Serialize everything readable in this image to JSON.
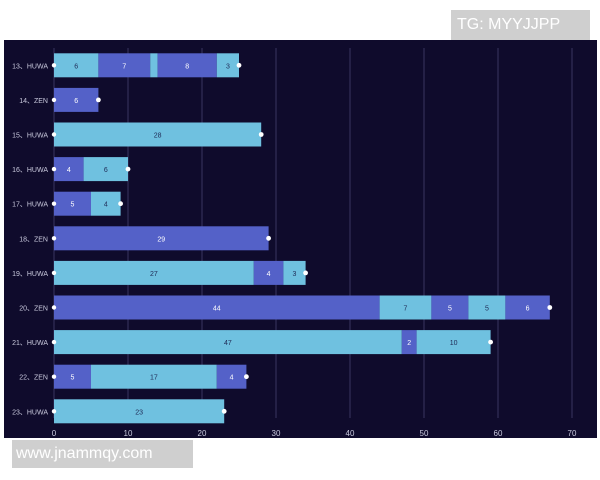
{
  "watermarks": {
    "top": "TG: MYYJJPP",
    "bottom": "www.jnammqy.com"
  },
  "colors": {
    "background": "#0f0b2c",
    "dark": "#5461c8",
    "light": "#6fc1e0",
    "grid": "#3a3660",
    "text": "#c9c9dd",
    "label_dark": "#1f2a55"
  },
  "chart_data": {
    "type": "bar",
    "orientation": "horizontal",
    "stacked": true,
    "title": "",
    "xlabel": "",
    "ylabel": "",
    "xlim": [
      0,
      70
    ],
    "x_ticks": [
      0,
      10,
      20,
      30,
      40,
      50,
      60,
      70
    ],
    "grid": true,
    "categories": [
      "13、HUWA",
      "14、ZEN",
      "15、HUWA",
      "16、HUWA",
      "17、HUWA",
      "18、ZEN",
      "19、HUWA",
      "20、ZEN",
      "21、HUWA",
      "22、ZEN",
      "23、HUWA"
    ],
    "rows": [
      {
        "category": "13、HUWA",
        "segments": [
          {
            "value": 6,
            "color": "light",
            "label": "6"
          },
          {
            "value": 7,
            "color": "dark",
            "label": "7"
          },
          {
            "value": 1,
            "color": "light",
            "label": ""
          },
          {
            "value": 8,
            "color": "dark",
            "label": "8"
          },
          {
            "value": 3,
            "color": "light",
            "label": "3"
          }
        ]
      },
      {
        "category": "14、ZEN",
        "segments": [
          {
            "value": 6,
            "color": "dark",
            "label": "6"
          }
        ]
      },
      {
        "category": "15、HUWA",
        "segments": [
          {
            "value": 28,
            "color": "light",
            "label": "28"
          }
        ]
      },
      {
        "category": "16、HUWA",
        "segments": [
          {
            "value": 4,
            "color": "dark",
            "label": "4"
          },
          {
            "value": 6,
            "color": "light",
            "label": "6"
          }
        ]
      },
      {
        "category": "17、HUWA",
        "segments": [
          {
            "value": 5,
            "color": "dark",
            "label": "5"
          },
          {
            "value": 4,
            "color": "light",
            "label": "4"
          }
        ]
      },
      {
        "category": "18、ZEN",
        "segments": [
          {
            "value": 29,
            "color": "dark",
            "label": "29"
          }
        ]
      },
      {
        "category": "19、HUWA",
        "segments": [
          {
            "value": 27,
            "color": "light",
            "label": "27"
          },
          {
            "value": 4,
            "color": "dark",
            "label": "4"
          },
          {
            "value": 3,
            "color": "light",
            "label": "3"
          }
        ]
      },
      {
        "category": "20、ZEN",
        "segments": [
          {
            "value": 44,
            "color": "dark",
            "label": "44"
          },
          {
            "value": 7,
            "color": "light",
            "label": "7"
          },
          {
            "value": 5,
            "color": "dark",
            "label": "5"
          },
          {
            "value": 5,
            "color": "light",
            "label": "5"
          },
          {
            "value": 6,
            "color": "dark",
            "label": "6"
          }
        ]
      },
      {
        "category": "21、HUWA",
        "segments": [
          {
            "value": 47,
            "color": "light",
            "label": "47"
          },
          {
            "value": 2,
            "color": "dark",
            "label": "2"
          },
          {
            "value": 10,
            "color": "light",
            "label": "10"
          }
        ]
      },
      {
        "category": "22、ZEN",
        "segments": [
          {
            "value": 5,
            "color": "dark",
            "label": "5"
          },
          {
            "value": 17,
            "color": "light",
            "label": "17"
          },
          {
            "value": 4,
            "color": "dark",
            "label": "4"
          }
        ]
      },
      {
        "category": "23、HUWA",
        "segments": [
          {
            "value": 23,
            "color": "light",
            "label": "23"
          }
        ]
      }
    ]
  }
}
